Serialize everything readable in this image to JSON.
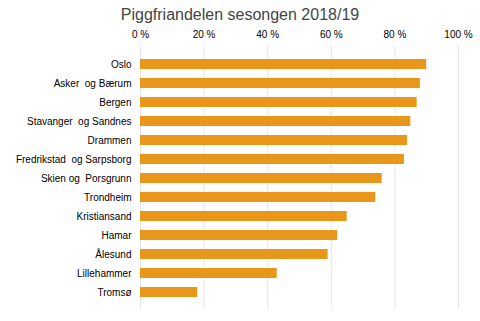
{
  "chart_data": {
    "type": "bar",
    "title": "Piggfriandelen sesongen 2018/19",
    "categories": [
      "Tromsø",
      "Lillehammer",
      "Ålesund",
      "Hamar",
      "Kristiansand",
      "Trondheim",
      "Skien og  Porsgrunn",
      "Fredrikstad  og Sarpsborg",
      "Drammen",
      "Stavanger  og Sandnes",
      "Bergen",
      "Asker  og Bærum",
      "Oslo"
    ],
    "values": [
      18,
      43,
      59,
      62,
      65,
      74,
      76,
      83,
      84,
      85,
      87,
      88,
      90
    ],
    "color": "#E8971A",
    "orientation": "horizontal",
    "xlim": [
      0,
      100
    ],
    "xticks": [
      {
        "value": 0,
        "label": "0 %"
      },
      {
        "value": 20,
        "label": "20 %"
      },
      {
        "value": 40,
        "label": "40 %"
      },
      {
        "value": 60,
        "label": "60 %"
      },
      {
        "value": 80,
        "label": "80 %"
      },
      {
        "value": 100,
        "label": "100 %"
      }
    ],
    "grid": true
  }
}
